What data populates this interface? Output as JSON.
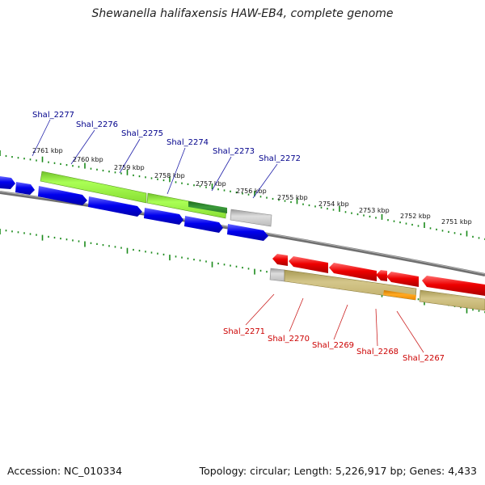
{
  "title": "Shewanella halifaxensis HAW-EB4, complete genome",
  "accession": "Accession: NC_010334",
  "summary": "Topology: circular; Length: 5,226,917 bp; Genes: 4,433",
  "colors": {
    "forward_label": "#00008b",
    "reverse_label": "#cc0000",
    "backbone": "#808080",
    "ticks": "#1a8a1a",
    "forward_cds": "#0000ee",
    "reverse_cds": "#ee0000",
    "forward_feature": "#99ff33",
    "forward_feature_dark": "#2e8b2e",
    "reverse_feature": "#c8b97a",
    "reverse_feature_accent": "#ff9900",
    "other_feature": "#bbbbbb"
  },
  "kbp_ticks": [
    "2761 kbp",
    "2760 kbp",
    "2759 kbp",
    "2758 kbp",
    "2757 kbp",
    "2756 kbp",
    "2755 kbp",
    "2754 kbp",
    "2753 kbp",
    "2752 kbp",
    "2751 kbp"
  ],
  "forward_genes": [
    "Shal_2277",
    "Shal_2276",
    "Shal_2275",
    "Shal_2274",
    "Shal_2273",
    "Shal_2272"
  ],
  "reverse_genes": [
    "Shal_2271",
    "Shal_2270",
    "Shal_2269",
    "Shal_2268",
    "Shal_2267"
  ]
}
